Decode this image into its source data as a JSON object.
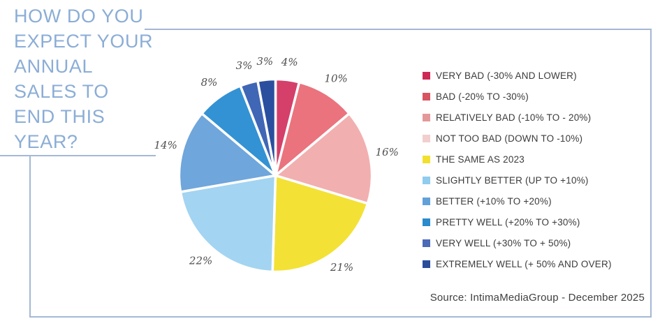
{
  "header": {
    "title_lines": [
      "HOW DO YOU",
      "EXPECT YOUR",
      "ANNUAL",
      "SALES TO",
      "END THIS",
      "YEAR?"
    ],
    "title_color": "#8badd6",
    "frame_color": "#a4b8d6"
  },
  "chart_data": {
    "type": "pie",
    "title": "HOW DO YOU EXPECT YOUR ANNUAL SALES TO END THIS YEAR?",
    "unit": "percent",
    "start_angle_deg": 0,
    "direction": "clockwise",
    "legend_position": "right",
    "slices": [
      {
        "label": "VERY BAD (-30% AND LOWER)",
        "value": 4,
        "value_label": "4%",
        "color": "#d4406a"
      },
      {
        "label": "BAD (-20% TO -30%)",
        "value": 10,
        "value_label": "10%",
        "color": "#ea737d"
      },
      {
        "label": "RELATIVELY BAD (-10% TO - 20%)",
        "value": 16,
        "value_label": "16%",
        "color": "#f2afb0"
      },
      {
        "label": "THE SAME AS 2023",
        "value": 21,
        "value_label": "21%",
        "color": "#f3e136"
      },
      {
        "label": "SLIGHTLY BETTER (UP TO +10%)",
        "value": 22,
        "value_label": "22%",
        "color": "#a3d4f2"
      },
      {
        "label": "BETTER (+10% TO +20%)",
        "value": 14,
        "value_label": "14%",
        "color": "#6fa6db"
      },
      {
        "label": "PRETTY WELL (+20% TO +30%)",
        "value": 8,
        "value_label": "8%",
        "color": "#3392d3"
      },
      {
        "label": "VERY WELL (+30% TO + 50%)",
        "value": 3,
        "value_label": "3%",
        "color": "#4066b6"
      },
      {
        "label": "EXTREMELY WELL (+ 50% AND OVER)",
        "value": 3,
        "value_label": "3%",
        "color": "#2b4f9f"
      }
    ]
  },
  "legend": {
    "items": [
      {
        "label": "VERY BAD (-30% AND LOWER)",
        "color": "#cd2954"
      },
      {
        "label": "BAD (-20% TO -30%)",
        "color": "#d85460"
      },
      {
        "label": "RELATIVELY BAD (-10% TO - 20%)",
        "color": "#e4989a"
      },
      {
        "label": "NOT TOO BAD (DOWN TO -10%)",
        "color": "#f1cfcc"
      },
      {
        "label": "THE SAME AS 2023",
        "color": "#f1e12e"
      },
      {
        "label": "SLIGHTLY BETTER (UP TO +10%)",
        "color": "#90ccee"
      },
      {
        "label": "BETTER (+10% TO +20%)",
        "color": "#61a1d9"
      },
      {
        "label": "PRETTY WELL (+20% TO +30%)",
        "color": "#2a8bcd"
      },
      {
        "label": "VERY WELL (+30% TO + 50%)",
        "color": "#4b6bb7"
      },
      {
        "label": "EXTREMELY WELL (+ 50% AND OVER)",
        "color": "#2a4c9b"
      }
    ]
  },
  "footer": {
    "source": "Source: IntimaMediaGroup - December 2025"
  }
}
